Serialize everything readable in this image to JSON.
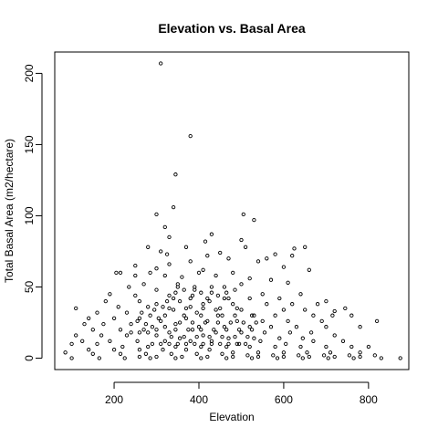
{
  "chart_data": {
    "type": "scatter",
    "title": "Elevation vs. Basal Area",
    "xlabel": "Elevation",
    "ylabel": "Total Basal Area (m2/hectare)",
    "xlim": [
      60,
      895
    ],
    "ylim": [
      -8,
      215
    ],
    "xticks": [
      200,
      400,
      600,
      800
    ],
    "yticks": [
      0,
      50,
      100,
      150,
      200
    ],
    "grid": false,
    "marker": "open-circle",
    "points": [
      [
        310,
        207
      ],
      [
        380,
        156
      ],
      [
        345,
        129
      ],
      [
        340,
        106
      ],
      [
        300,
        101
      ],
      [
        505,
        101
      ],
      [
        530,
        97
      ],
      [
        320,
        92
      ],
      [
        430,
        87
      ],
      [
        330,
        85
      ],
      [
        500,
        83
      ],
      [
        415,
        82
      ],
      [
        280,
        78
      ],
      [
        370,
        78
      ],
      [
        510,
        78
      ],
      [
        650,
        78
      ],
      [
        625,
        77
      ],
      [
        310,
        75
      ],
      [
        450,
        74
      ],
      [
        580,
        73
      ],
      [
        325,
        73
      ],
      [
        420,
        72
      ],
      [
        620,
        72
      ],
      [
        470,
        70
      ],
      [
        560,
        70
      ],
      [
        380,
        68
      ],
      [
        330,
        66
      ],
      [
        540,
        68
      ],
      [
        600,
        64
      ],
      [
        250,
        65
      ],
      [
        300,
        63
      ],
      [
        410,
        62
      ],
      [
        660,
        62
      ],
      [
        480,
        60
      ],
      [
        205,
        60
      ],
      [
        215,
        60
      ],
      [
        250,
        58
      ],
      [
        285,
        60
      ],
      [
        320,
        58
      ],
      [
        360,
        57
      ],
      [
        400,
        60
      ],
      [
        440,
        58
      ],
      [
        520,
        56
      ],
      [
        570,
        55
      ],
      [
        610,
        53
      ],
      [
        270,
        52
      ],
      [
        350,
        52
      ],
      [
        460,
        50
      ],
      [
        500,
        52
      ],
      [
        235,
        50
      ],
      [
        300,
        48
      ],
      [
        390,
        48
      ],
      [
        430,
        46
      ],
      [
        550,
        45
      ],
      [
        640,
        45
      ],
      [
        190,
        45
      ],
      [
        250,
        44
      ],
      [
        330,
        44
      ],
      [
        470,
        42
      ],
      [
        520,
        42
      ],
      [
        590,
        42
      ],
      [
        700,
        40
      ],
      [
        180,
        40
      ],
      [
        260,
        40
      ],
      [
        300,
        38
      ],
      [
        355,
        40
      ],
      [
        410,
        38
      ],
      [
        480,
        38
      ],
      [
        560,
        38
      ],
      [
        620,
        38
      ],
      [
        680,
        38
      ],
      [
        110,
        35
      ],
      [
        210,
        36
      ],
      [
        280,
        36
      ],
      [
        340,
        34
      ],
      [
        380,
        36
      ],
      [
        440,
        34
      ],
      [
        500,
        34
      ],
      [
        600,
        34
      ],
      [
        650,
        34
      ],
      [
        720,
        33
      ],
      [
        745,
        35
      ],
      [
        160,
        32
      ],
      [
        230,
        32
      ],
      [
        320,
        30
      ],
      [
        395,
        32
      ],
      [
        455,
        30
      ],
      [
        530,
        30
      ],
      [
        580,
        30
      ],
      [
        670,
        30
      ],
      [
        715,
        30
      ],
      [
        760,
        30
      ],
      [
        140,
        28
      ],
      [
        200,
        28
      ],
      [
        260,
        28
      ],
      [
        310,
        26
      ],
      [
        370,
        28
      ],
      [
        420,
        26
      ],
      [
        490,
        26
      ],
      [
        550,
        26
      ],
      [
        610,
        26
      ],
      [
        690,
        26
      ],
      [
        820,
        26
      ],
      [
        130,
        24
      ],
      [
        175,
        24
      ],
      [
        240,
        24
      ],
      [
        290,
        22
      ],
      [
        345,
        24
      ],
      [
        400,
        22
      ],
      [
        460,
        22
      ],
      [
        520,
        22
      ],
      [
        570,
        22
      ],
      [
        630,
        22
      ],
      [
        700,
        22
      ],
      [
        780,
        22
      ],
      [
        150,
        20
      ],
      [
        215,
        20
      ],
      [
        270,
        20
      ],
      [
        330,
        18
      ],
      [
        385,
        20
      ],
      [
        440,
        18
      ],
      [
        500,
        18
      ],
      [
        555,
        18
      ],
      [
        615,
        18
      ],
      [
        665,
        18
      ],
      [
        110,
        16
      ],
      [
        170,
        16
      ],
      [
        230,
        16
      ],
      [
        300,
        16
      ],
      [
        355,
        14
      ],
      [
        410,
        16
      ],
      [
        470,
        14
      ],
      [
        530,
        14
      ],
      [
        590,
        14
      ],
      [
        645,
        14
      ],
      [
        720,
        16
      ],
      [
        125,
        12
      ],
      [
        190,
        12
      ],
      [
        255,
        12
      ],
      [
        320,
        12
      ],
      [
        380,
        12
      ],
      [
        430,
        12
      ],
      [
        495,
        10
      ],
      [
        545,
        12
      ],
      [
        605,
        10
      ],
      [
        670,
        12
      ],
      [
        740,
        12
      ],
      [
        100,
        10
      ],
      [
        160,
        10
      ],
      [
        220,
        8
      ],
      [
        280,
        8
      ],
      [
        345,
        8
      ],
      [
        405,
        8
      ],
      [
        465,
        8
      ],
      [
        520,
        8
      ],
      [
        580,
        8
      ],
      [
        640,
        8
      ],
      [
        700,
        8
      ],
      [
        760,
        8
      ],
      [
        800,
        8
      ],
      [
        140,
        6
      ],
      [
        200,
        6
      ],
      [
        260,
        6
      ],
      [
        315,
        6
      ],
      [
        370,
        6
      ],
      [
        425,
        6
      ],
      [
        480,
        4
      ],
      [
        540,
        4
      ],
      [
        600,
        4
      ],
      [
        655,
        4
      ],
      [
        710,
        4
      ],
      [
        780,
        4
      ],
      [
        85,
        4
      ],
      [
        150,
        3
      ],
      [
        215,
        3
      ],
      [
        275,
        3
      ],
      [
        335,
        3
      ],
      [
        395,
        3
      ],
      [
        455,
        3
      ],
      [
        515,
        2
      ],
      [
        575,
        2
      ],
      [
        635,
        2
      ],
      [
        695,
        2
      ],
      [
        755,
        2
      ],
      [
        815,
        2
      ],
      [
        100,
        0
      ],
      [
        165,
        0
      ],
      [
        225,
        0
      ],
      [
        285,
        0
      ],
      [
        345,
        0
      ],
      [
        405,
        0
      ],
      [
        465,
        0
      ],
      [
        525,
        0
      ],
      [
        585,
        0
      ],
      [
        645,
        0
      ],
      [
        705,
        0
      ],
      [
        765,
        0
      ],
      [
        830,
        0
      ],
      [
        875,
        0
      ],
      [
        260,
        1
      ],
      [
        300,
        1
      ],
      [
        360,
        1
      ],
      [
        420,
        1
      ],
      [
        480,
        1
      ],
      [
        540,
        1
      ],
      [
        600,
        1
      ],
      [
        660,
        1
      ],
      [
        720,
        1
      ],
      [
        780,
        1
      ],
      [
        335,
        15
      ],
      [
        365,
        15
      ],
      [
        395,
        15
      ],
      [
        425,
        15
      ],
      [
        455,
        15
      ],
      [
        485,
        15
      ],
      [
        515,
        15
      ],
      [
        345,
        20
      ],
      [
        375,
        20
      ],
      [
        405,
        20
      ],
      [
        435,
        20
      ],
      [
        465,
        20
      ],
      [
        495,
        20
      ],
      [
        525,
        20
      ],
      [
        355,
        25
      ],
      [
        385,
        25
      ],
      [
        415,
        25
      ],
      [
        445,
        25
      ],
      [
        475,
        25
      ],
      [
        505,
        25
      ],
      [
        535,
        25
      ],
      [
        365,
        30
      ],
      [
        405,
        30
      ],
      [
        445,
        30
      ],
      [
        485,
        30
      ],
      [
        525,
        30
      ],
      [
        330,
        35
      ],
      [
        370,
        35
      ],
      [
        410,
        35
      ],
      [
        450,
        35
      ],
      [
        490,
        35
      ],
      [
        340,
        42
      ],
      [
        380,
        42
      ],
      [
        420,
        42
      ],
      [
        460,
        42
      ],
      [
        350,
        50
      ],
      [
        390,
        50
      ],
      [
        430,
        50
      ],
      [
        290,
        10
      ],
      [
        310,
        10
      ],
      [
        330,
        10
      ],
      [
        350,
        10
      ],
      [
        370,
        10
      ],
      [
        390,
        10
      ],
      [
        410,
        10
      ],
      [
        430,
        10
      ],
      [
        450,
        10
      ],
      [
        470,
        10
      ],
      [
        490,
        10
      ],
      [
        510,
        10
      ],
      [
        240,
        18
      ],
      [
        260,
        18
      ],
      [
        280,
        18
      ],
      [
        300,
        20
      ],
      [
        320,
        22
      ],
      [
        265,
        32
      ],
      [
        285,
        30
      ],
      [
        305,
        28
      ],
      [
        255,
        26
      ],
      [
        275,
        24
      ],
      [
        295,
        34
      ],
      [
        315,
        36
      ],
      [
        325,
        40
      ],
      [
        345,
        46
      ],
      [
        365,
        48
      ],
      [
        385,
        44
      ],
      [
        405,
        46
      ],
      [
        425,
        40
      ],
      [
        445,
        44
      ],
      [
        465,
        46
      ],
      [
        485,
        48
      ]
    ]
  }
}
